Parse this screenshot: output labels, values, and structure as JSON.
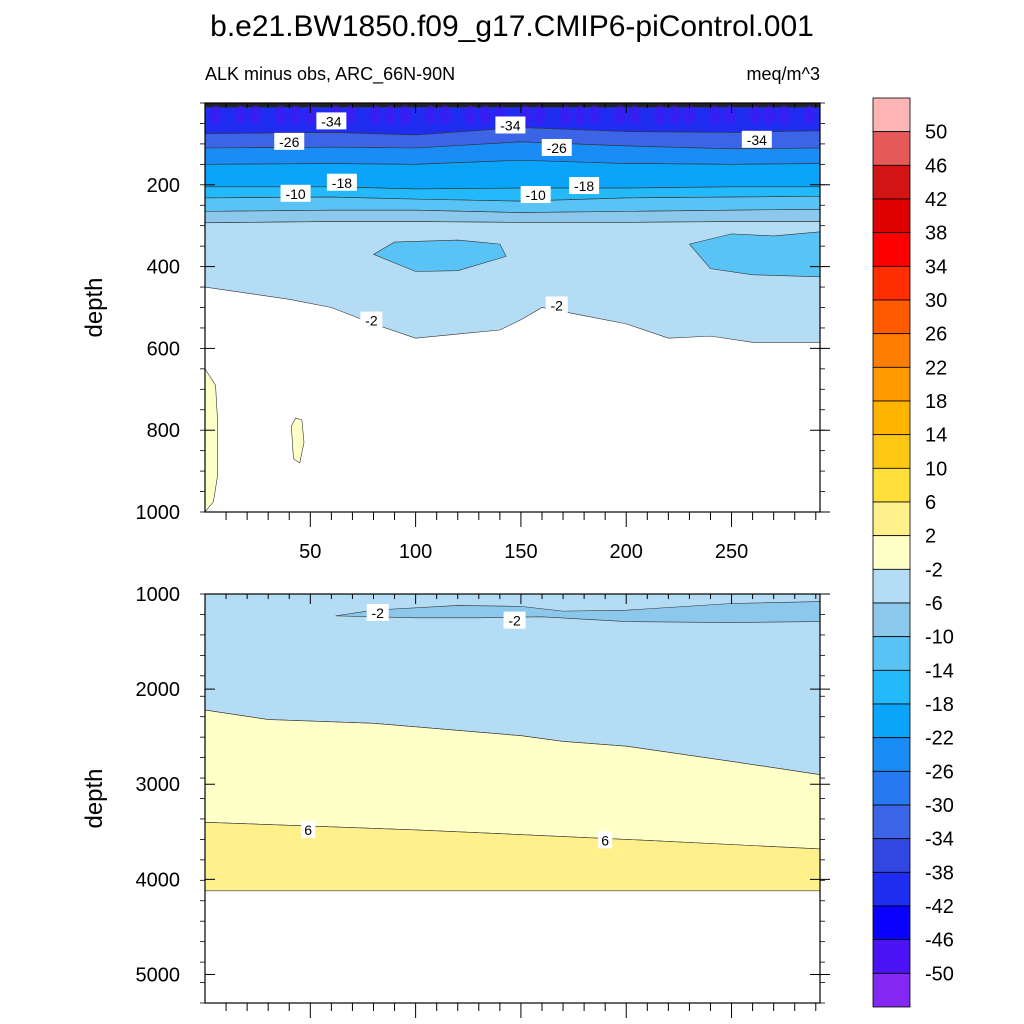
{
  "title": "b.e21.BW1850.f09_g17.CMIP6-piControl.001",
  "subtitle_left": "ALK minus obs, ARC_66N-90N",
  "subtitle_right": "meq/m^3",
  "colorbar": {
    "levels": [
      "50",
      "46",
      "42",
      "38",
      "34",
      "30",
      "26",
      "22",
      "18",
      "14",
      "10",
      "6",
      "2",
      "-2",
      "-6",
      "-10",
      "-14",
      "-18",
      "-22",
      "-26",
      "-30",
      "-34",
      "-38",
      "-42",
      "-46",
      "-50"
    ],
    "colors": [
      "#fdb4b4",
      "#e65a5a",
      "#d21414",
      "#e10000",
      "#ff0000",
      "#ff2d00",
      "#ff5a00",
      "#ff7d00",
      "#ff9b00",
      "#ffb400",
      "#ffc814",
      "#ffe03a",
      "#fff08c",
      "#ffffc8",
      "#b4dcf5",
      "#8cc8eb",
      "#5ac3f5",
      "#23b9fa",
      "#0aa5fa",
      "#198cf5",
      "#2878f0",
      "#3c64e6",
      "#3246e1",
      "#1e2def",
      "#0a00ff",
      "#4b14f5",
      "#8228f0"
    ]
  },
  "chart_data": [
    {
      "type": "heatmap",
      "panel": "upper",
      "xlabel": "",
      "ylabel": "depth",
      "xlim": [
        0,
        292
      ],
      "ylim": [
        1000,
        0
      ],
      "xticks": [
        "50",
        "100",
        "150",
        "200",
        "250"
      ],
      "yticks": [
        "200",
        "400",
        "600",
        "800",
        "1000"
      ],
      "contour_labels": [
        {
          "text": "-34",
          "x": 60,
          "y": 45
        },
        {
          "text": "-26",
          "x": 40,
          "y": 95
        },
        {
          "text": "-34",
          "x": 145,
          "y": 55
        },
        {
          "text": "-26",
          "x": 167,
          "y": 110
        },
        {
          "text": "-34",
          "x": 262,
          "y": 90
        },
        {
          "text": "-18",
          "x": 65,
          "y": 195
        },
        {
          "text": "-10",
          "x": 43,
          "y": 222
        },
        {
          "text": "-10",
          "x": 157,
          "y": 225
        },
        {
          "text": "-18",
          "x": 180,
          "y": 203
        },
        {
          "text": "-2",
          "x": 79,
          "y": 532
        },
        {
          "text": "-2",
          "x": 167,
          "y": 495
        }
      ],
      "bands": [
        {
          "from_level": "-50",
          "top": [
            [
              0,
              0
            ],
            [
              292,
              0
            ]
          ],
          "bottom": [
            [
              0,
              10
            ],
            [
              292,
              10
            ]
          ]
        },
        {
          "from_level": "-38",
          "top": [
            [
              0,
              10
            ],
            [
              292,
              10
            ]
          ],
          "bottom": [
            [
              0,
              75
            ],
            [
              60,
              72
            ],
            [
              100,
              78
            ],
            [
              150,
              60
            ],
            [
              200,
              70
            ],
            [
              250,
              72
            ],
            [
              292,
              68
            ]
          ]
        },
        {
          "from_level": "-30",
          "top": [
            [
              0,
              75
            ],
            [
              60,
              72
            ],
            [
              100,
              78
            ],
            [
              150,
              60
            ],
            [
              200,
              70
            ],
            [
              250,
              72
            ],
            [
              292,
              68
            ]
          ],
          "bottom": [
            [
              0,
              110
            ],
            [
              60,
              108
            ],
            [
              100,
              110
            ],
            [
              150,
              95
            ],
            [
              200,
              105
            ],
            [
              250,
              112
            ],
            [
              292,
              110
            ]
          ]
        },
        {
          "from_level": "-22",
          "top": [
            [
              0,
              110
            ],
            [
              60,
              108
            ],
            [
              100,
              110
            ],
            [
              150,
              95
            ],
            [
              200,
              105
            ],
            [
              250,
              112
            ],
            [
              292,
              110
            ]
          ],
          "bottom": [
            [
              0,
              150
            ],
            [
              60,
              148
            ],
            [
              100,
              150
            ],
            [
              150,
              140
            ],
            [
              200,
              148
            ],
            [
              250,
              150
            ],
            [
              292,
              148
            ]
          ]
        },
        {
          "from_level": "-18",
          "top": [
            [
              0,
              150
            ],
            [
              60,
              148
            ],
            [
              100,
              150
            ],
            [
              150,
              140
            ],
            [
              200,
              148
            ],
            [
              250,
              150
            ],
            [
              292,
              148
            ]
          ],
          "bottom": [
            [
              0,
              205
            ],
            [
              60,
              205
            ],
            [
              100,
              210
            ],
            [
              150,
              208
            ],
            [
              200,
              208
            ],
            [
              250,
              205
            ],
            [
              292,
              205
            ]
          ]
        },
        {
          "from_level": "-14",
          "top": [
            [
              0,
              205
            ],
            [
              60,
              205
            ],
            [
              100,
              210
            ],
            [
              150,
              208
            ],
            [
              200,
              208
            ],
            [
              250,
              205
            ],
            [
              292,
              205
            ]
          ],
          "bottom": [
            [
              0,
              232
            ],
            [
              60,
              230
            ],
            [
              100,
              235
            ],
            [
              150,
              240
            ],
            [
              200,
              232
            ],
            [
              250,
              230
            ],
            [
              292,
              228
            ]
          ]
        },
        {
          "from_level": "-10",
          "top": [
            [
              0,
              232
            ],
            [
              60,
              230
            ],
            [
              100,
              235
            ],
            [
              150,
              240
            ],
            [
              200,
              232
            ],
            [
              250,
              230
            ],
            [
              292,
              228
            ]
          ],
          "bottom": [
            [
              0,
              265
            ],
            [
              60,
              262
            ],
            [
              100,
              262
            ],
            [
              150,
              268
            ],
            [
              200,
              265
            ],
            [
              250,
              262
            ],
            [
              292,
              260
            ]
          ]
        },
        {
          "from_level": "-6",
          "top": [
            [
              0,
              265
            ],
            [
              60,
              262
            ],
            [
              100,
              262
            ],
            [
              150,
              268
            ],
            [
              200,
              265
            ],
            [
              250,
              262
            ],
            [
              292,
              260
            ]
          ],
          "bottom": [
            [
              0,
              293
            ],
            [
              60,
              290
            ],
            [
              100,
              290
            ],
            [
              150,
              292
            ],
            [
              200,
              292
            ],
            [
              250,
              290
            ],
            [
              292,
              290
            ]
          ]
        },
        {
          "from_level": "-2",
          "top": [
            [
              0,
              293
            ],
            [
              60,
              290
            ],
            [
              100,
              290
            ],
            [
              150,
              292
            ],
            [
              200,
              292
            ],
            [
              250,
              290
            ],
            [
              292,
              290
            ]
          ],
          "bottom": [
            [
              0,
              450
            ],
            [
              20,
              465
            ],
            [
              40,
              480
            ],
            [
              60,
              500
            ],
            [
              80,
              540
            ],
            [
              100,
              575
            ],
            [
              120,
              565
            ],
            [
              140,
              555
            ],
            [
              150,
              530
            ],
            [
              160,
              500
            ],
            [
              180,
              520
            ],
            [
              200,
              540
            ],
            [
              220,
              575
            ],
            [
              240,
              570
            ],
            [
              260,
              585
            ],
            [
              292,
              585
            ]
          ]
        }
      ],
      "blobs": [
        {
          "from_level": "-10",
          "points": [
            [
              80,
              370
            ],
            [
              90,
              340
            ],
            [
              120,
              335
            ],
            [
              130,
              340
            ],
            [
              140,
              345
            ],
            [
              143,
              375
            ],
            [
              120,
              410
            ],
            [
              100,
              412
            ]
          ]
        },
        {
          "from_level": "-10",
          "points": [
            [
              230,
              345
            ],
            [
              250,
              320
            ],
            [
              270,
              325
            ],
            [
              292,
              315
            ],
            [
              292,
              425
            ],
            [
              260,
              420
            ],
            [
              240,
              405
            ]
          ]
        },
        {
          "from_level": "2",
          "points": [
            [
              0,
              650
            ],
            [
              5,
              690
            ],
            [
              6,
              780
            ],
            [
              6,
              910
            ],
            [
              4,
              975
            ],
            [
              0,
              1000
            ]
          ]
        },
        {
          "from_level": "2",
          "points": [
            [
              41,
              790
            ],
            [
              43,
              770
            ],
            [
              46,
              775
            ],
            [
              47,
              830
            ],
            [
              45,
              880
            ],
            [
              42,
              870
            ]
          ]
        }
      ]
    },
    {
      "type": "heatmap",
      "panel": "lower",
      "xlabel": "",
      "ylabel": "depth",
      "xlim": [
        0,
        292
      ],
      "ylim": [
        5300,
        1000
      ],
      "xticks": [],
      "yticks": [
        "1000",
        "2000",
        "3000",
        "4000",
        "5000"
      ],
      "contour_labels": [
        {
          "text": "-2",
          "x": 82,
          "y": 1200
        },
        {
          "text": "-2",
          "x": 147,
          "y": 1280
        },
        {
          "text": "6",
          "x": 49,
          "y": 3480
        },
        {
          "text": "6",
          "x": 190,
          "y": 3590
        }
      ],
      "bands": [
        {
          "from_level": "-2",
          "top": [
            [
              0,
              1000
            ],
            [
              292,
              1000
            ]
          ],
          "bottom": [
            [
              0,
              2220
            ],
            [
              30,
              2320
            ],
            [
              80,
              2360
            ],
            [
              150,
              2490
            ],
            [
              170,
              2550
            ],
            [
              200,
              2600
            ],
            [
              250,
              2760
            ],
            [
              292,
              2900
            ]
          ]
        },
        {
          "from_level": "2",
          "top": [
            [
              0,
              2220
            ],
            [
              30,
              2320
            ],
            [
              80,
              2360
            ],
            [
              150,
              2490
            ],
            [
              170,
              2550
            ],
            [
              200,
              2600
            ],
            [
              250,
              2760
            ],
            [
              292,
              2900
            ]
          ],
          "bottom": [
            [
              0,
              3400
            ],
            [
              100,
              3480
            ],
            [
              200,
              3580
            ],
            [
              292,
              3680
            ]
          ]
        },
        {
          "from_level": "6",
          "top": [
            [
              0,
              3400
            ],
            [
              100,
              3480
            ],
            [
              200,
              3580
            ],
            [
              292,
              3680
            ]
          ],
          "bottom": [
            [
              0,
              4120
            ],
            [
              292,
              4120
            ]
          ]
        }
      ],
      "blobs": [
        {
          "from_level": "-6",
          "points": [
            [
              62,
              1230
            ],
            [
              80,
              1170
            ],
            [
              120,
              1120
            ],
            [
              150,
              1130
            ],
            [
              170,
              1180
            ],
            [
              200,
              1170
            ],
            [
              250,
              1100
            ],
            [
              292,
              1080
            ],
            [
              292,
              1290
            ],
            [
              250,
              1300
            ],
            [
              200,
              1290
            ],
            [
              160,
              1240
            ],
            [
              130,
              1250
            ],
            [
              100,
              1250
            ]
          ]
        }
      ]
    }
  ]
}
